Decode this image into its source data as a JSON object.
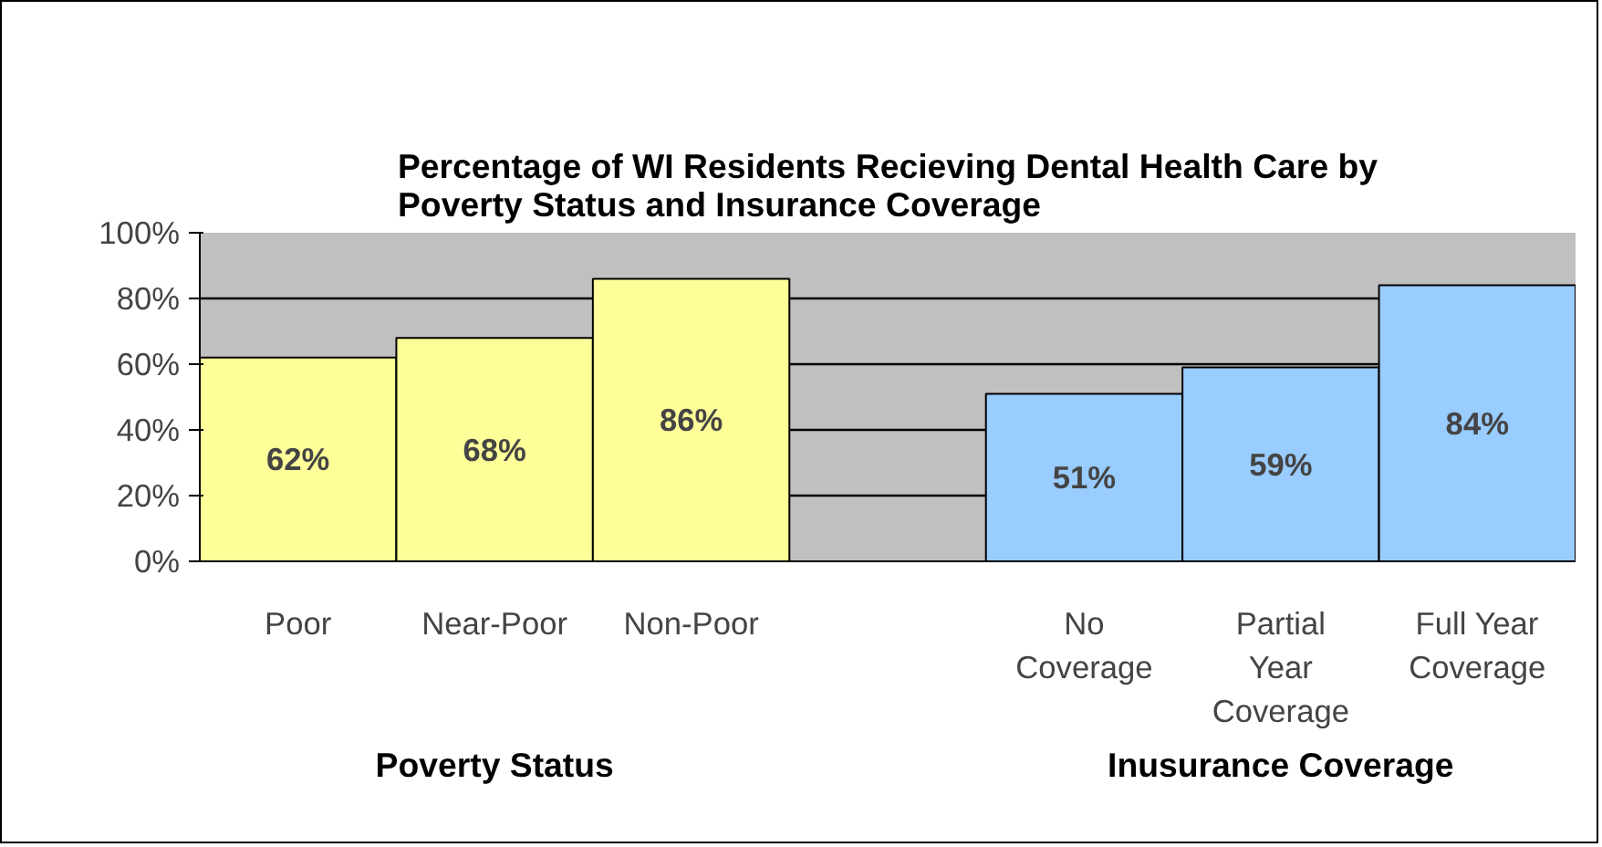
{
  "chart_data": {
    "type": "bar",
    "title": "Percentage of WI Residents Recieving Dental Health Care by\nPoverty Status and Insurance Coverage",
    "categories": [
      "Poor",
      "Near-Poor",
      "Non-Poor",
      null,
      "No Coverage",
      "Partial Year Coverage",
      "Full Year Coverage"
    ],
    "values": [
      62,
      68,
      86,
      null,
      51,
      59,
      84
    ],
    "colors": [
      "#ffff99",
      "#ffff99",
      "#ffff99",
      "#c0c0c0",
      "#99ccff",
      "#99ccff",
      "#99ccff"
    ],
    "value_labels": [
      "62%",
      "68%",
      "86%",
      null,
      "51%",
      "59%",
      "84%"
    ],
    "ylim": [
      0,
      100
    ],
    "yticks": [
      {
        "value": 0,
        "label": "0%"
      },
      {
        "value": 20,
        "label": "20%"
      },
      {
        "value": 40,
        "label": "40%"
      },
      {
        "value": 60,
        "label": "60%"
      },
      {
        "value": 80,
        "label": "80%"
      },
      {
        "value": 100,
        "label": "100%"
      }
    ],
    "grid": "y",
    "annotations": [
      "Poverty Status",
      "Inusurance Coverage"
    ]
  }
}
